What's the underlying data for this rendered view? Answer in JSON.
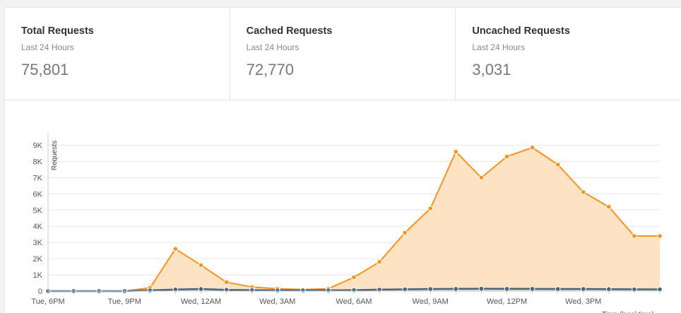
{
  "stats": [
    {
      "title": "Total Requests",
      "subtitle": "Last 24 Hours",
      "value": "75,801"
    },
    {
      "title": "Cached Requests",
      "subtitle": "Last 24 Hours",
      "value": "72,770"
    },
    {
      "title": "Uncached Requests",
      "subtitle": "Last 24 Hours",
      "value": "3,031"
    }
  ],
  "colors": {
    "cached_line": "#f7931e",
    "cached_fill": "#fde3c4",
    "uncached_line": "#46647e",
    "grid": "#e6e6e6"
  },
  "chart_data": {
    "type": "area",
    "title": "",
    "xlabel": "Time (local time)",
    "ylabel": "Requests",
    "ylim": [
      0,
      9500
    ],
    "yticks": [
      0,
      1000,
      2000,
      3000,
      4000,
      5000,
      6000,
      7000,
      8000,
      9000
    ],
    "ytick_labels": [
      "0",
      "1K",
      "2K",
      "3K",
      "4K",
      "5K",
      "6K",
      "7K",
      "8K",
      "9K"
    ],
    "x": [
      0,
      1,
      2,
      3,
      4,
      5,
      6,
      7,
      8,
      9,
      10,
      11,
      12,
      13,
      14,
      15,
      16,
      17,
      18,
      19,
      20,
      21,
      22,
      23,
      24
    ],
    "xticks": [
      0,
      3,
      6,
      9,
      12,
      15,
      18,
      21
    ],
    "xtick_labels": [
      "Tue, 6PM",
      "Tue, 9PM",
      "Wed, 12AM",
      "Wed, 3AM",
      "Wed, 6AM",
      "Wed, 9AM",
      "Wed, 12PM",
      "Wed, 3PM"
    ],
    "grid": true,
    "series": [
      {
        "values": [
          0,
          0,
          0,
          0,
          200,
          2600,
          1600,
          550,
          250,
          150,
          100,
          150,
          850,
          1800,
          3600,
          5100,
          8600,
          7000,
          8300,
          8850,
          7800,
          6100,
          5200,
          3400,
          3400
        ]
      },
      {
        "values": [
          0,
          0,
          0,
          0,
          50,
          100,
          130,
          80,
          60,
          50,
          50,
          50,
          60,
          90,
          110,
          130,
          140,
          150,
          140,
          140,
          130,
          130,
          120,
          110,
          110
        ]
      }
    ]
  }
}
